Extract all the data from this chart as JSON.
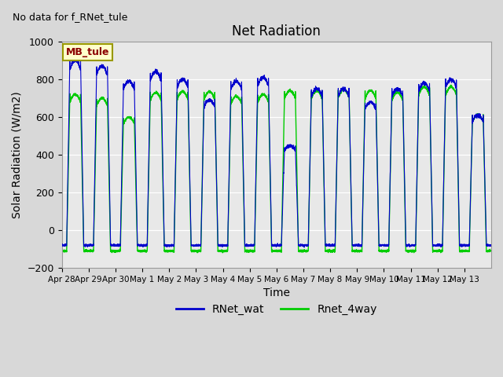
{
  "title": "Net Radiation",
  "xlabel": "Time",
  "ylabel": "Solar Radiation (W/m2)",
  "annotation": "No data for f_RNet_tule",
  "legend_label": "MB_tule",
  "series": [
    {
      "name": "RNet_wat",
      "color": "#0000cc"
    },
    {
      "name": "Rnet_4way",
      "color": "#00cc00"
    }
  ],
  "ylim": [
    -200,
    1000
  ],
  "bg_color": "#e8e8e8",
  "num_days": 16,
  "day_peaks_wat": [
    900,
    870,
    790,
    840,
    800,
    690,
    790,
    810,
    450,
    750,
    750,
    680,
    750,
    780,
    800,
    610
  ],
  "day_peaks_4way": [
    720,
    700,
    600,
    730,
    735,
    735,
    710,
    720,
    740,
    740,
    745,
    740,
    730,
    760,
    760,
    610
  ],
  "night_val_wat": -80,
  "night_val_4way": -110,
  "tick_labels": [
    "Apr 28",
    "Apr 29",
    "Apr 30",
    "May 1",
    "May 2",
    "May 3",
    "May 4",
    "May 5",
    "May 6",
    "May 7",
    "May 8",
    "May 9",
    "May 10",
    "May 11",
    "May 12",
    "May 13"
  ],
  "figsize": [
    6.4,
    4.8
  ],
  "dpi": 100
}
